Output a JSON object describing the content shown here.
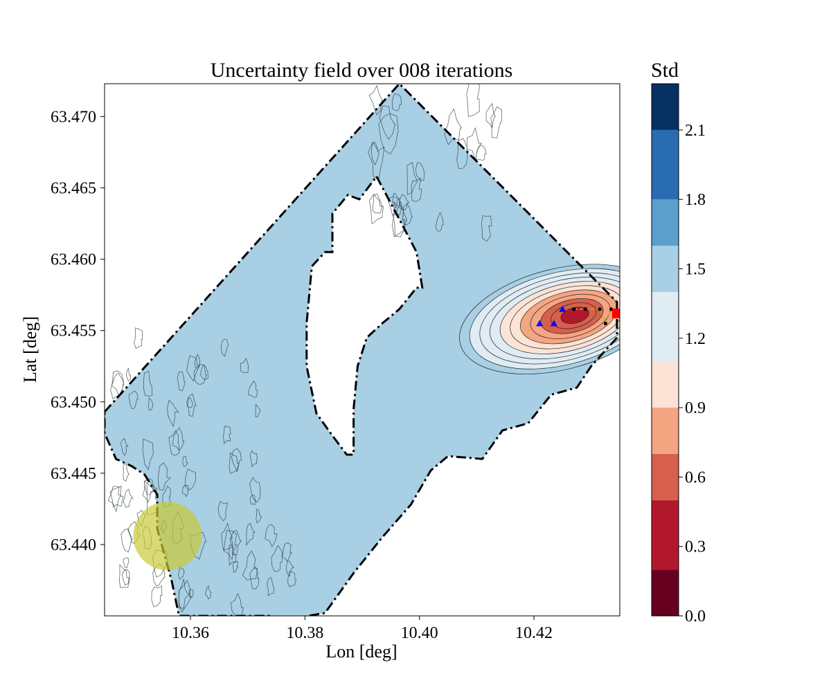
{
  "chart_data": {
    "type": "heatmap",
    "subtype": "filled-contour-map",
    "title": "Uncertainty field over 008 iterations",
    "xlabel": "Lon [deg]",
    "ylabel": "Lat [deg]",
    "xlim": [
      10.345,
      10.435
    ],
    "ylim": [
      63.435,
      63.4723
    ],
    "xticks": [
      10.36,
      10.38,
      10.4,
      10.42
    ],
    "xtick_labels": [
      "10.36",
      "10.38",
      "10.40",
      "10.42"
    ],
    "yticks": [
      63.44,
      63.445,
      63.45,
      63.455,
      63.46,
      63.465,
      63.47
    ],
    "ytick_labels": [
      "63.440",
      "63.445",
      "63.450",
      "63.455",
      "63.460",
      "63.465",
      "63.470"
    ],
    "grid": false,
    "colorbar": {
      "title": "Std",
      "cmap": "RdBu",
      "range": [
        0.0,
        2.3
      ],
      "levels": [
        0.0,
        0.3,
        0.6,
        0.9,
        1.2,
        1.5,
        1.8,
        2.1
      ],
      "tick_labels": [
        "0.0",
        "0.3",
        "0.6",
        "0.9",
        "1.2",
        "1.5",
        "1.8",
        "2.1"
      ],
      "bins": [
        {
          "from": 0.0,
          "to": 0.2,
          "color": "#67001f"
        },
        {
          "from": 0.2,
          "to": 0.5,
          "color": "#b2182b"
        },
        {
          "from": 0.5,
          "to": 0.7,
          "color": "#d6604d"
        },
        {
          "from": 0.7,
          "to": 0.9,
          "color": "#f4a582"
        },
        {
          "from": 0.9,
          "to": 1.1,
          "color": "#fbe3d6"
        },
        {
          "from": 1.1,
          "to": 1.4,
          "color": "#e0ecf3"
        },
        {
          "from": 1.4,
          "to": 1.6,
          "color": "#a8cfe4"
        },
        {
          "from": 1.6,
          "to": 1.8,
          "color": "#5aa0cb"
        },
        {
          "from": 1.8,
          "to": 2.1,
          "color": "#2a6cb1"
        },
        {
          "from": 2.1,
          "to": 2.3,
          "color": "#053061"
        }
      ]
    },
    "background_std_level": 1.5,
    "domain_boundary": [
      [
        10.345,
        63.4493
      ],
      [
        10.3965,
        63.4723
      ],
      [
        10.4345,
        63.457
      ],
      [
        10.4345,
        63.4545
      ],
      [
        10.43,
        63.4525
      ],
      [
        10.4275,
        63.451
      ],
      [
        10.423,
        63.4505
      ],
      [
        10.419,
        63.4485
      ],
      [
        10.4145,
        63.448
      ],
      [
        10.411,
        63.446
      ],
      [
        10.405,
        63.4462
      ],
      [
        10.402,
        63.4452
      ],
      [
        10.3985,
        63.4428
      ],
      [
        10.3935,
        63.4405
      ],
      [
        10.3885,
        63.438
      ],
      [
        10.3835,
        63.4352
      ],
      [
        10.3805,
        63.435
      ],
      [
        10.378,
        63.4347
      ],
      [
        10.374,
        63.435
      ],
      [
        10.369,
        63.435
      ],
      [
        10.363,
        63.435
      ],
      [
        10.358,
        63.435
      ],
      [
        10.3567,
        63.4375
      ],
      [
        10.3542,
        63.4411
      ],
      [
        10.3542,
        63.4435
      ],
      [
        10.352,
        63.4449
      ],
      [
        10.3497,
        63.4455
      ],
      [
        10.347,
        63.446
      ],
      [
        10.345,
        63.4478
      ]
    ],
    "island_boundary": [
      [
        10.3925,
        63.4658
      ],
      [
        10.3965,
        63.4628
      ],
      [
        10.3995,
        63.4605
      ],
      [
        10.4005,
        63.458
      ],
      [
        10.3995,
        63.458
      ],
      [
        10.3965,
        63.4565
      ],
      [
        10.3935,
        63.4555
      ],
      [
        10.3908,
        63.4545
      ],
      [
        10.3892,
        63.4525
      ],
      [
        10.3885,
        63.4495
      ],
      [
        10.3885,
        63.4463
      ],
      [
        10.3873,
        63.4463
      ],
      [
        10.3845,
        63.4478
      ],
      [
        10.382,
        63.4492
      ],
      [
        10.3803,
        63.4525
      ],
      [
        10.3803,
        63.4555
      ],
      [
        10.3812,
        63.4595
      ],
      [
        10.3835,
        63.4605
      ],
      [
        10.3848,
        63.4605
      ],
      [
        10.3848,
        63.4632
      ],
      [
        10.3875,
        63.4645
      ],
      [
        10.3895,
        63.4642
      ]
    ],
    "low_uncertainty_region": {
      "center": [
        10.4245,
        63.4558
      ],
      "std_rings": [
        1.4,
        1.3,
        1.2,
        1.1,
        1.0,
        0.9,
        0.8,
        0.7,
        0.6,
        0.5,
        0.4
      ]
    },
    "markers": {
      "visited_points": [
        [
          10.427,
          63.4565
        ],
        [
          10.429,
          63.4565
        ],
        [
          10.4315,
          63.4565
        ],
        [
          10.4325,
          63.4555
        ],
        [
          10.4335,
          63.4565
        ]
      ],
      "triangles": [
        [
          10.421,
          63.4555
        ],
        [
          10.4235,
          63.4555
        ],
        [
          10.425,
          63.4565
        ]
      ],
      "current_location": [
        10.4345,
        63.4562
      ],
      "target_circle": {
        "center": [
          10.356,
          63.4406
        ],
        "radius_deg_lon": 0.006
      }
    }
  }
}
